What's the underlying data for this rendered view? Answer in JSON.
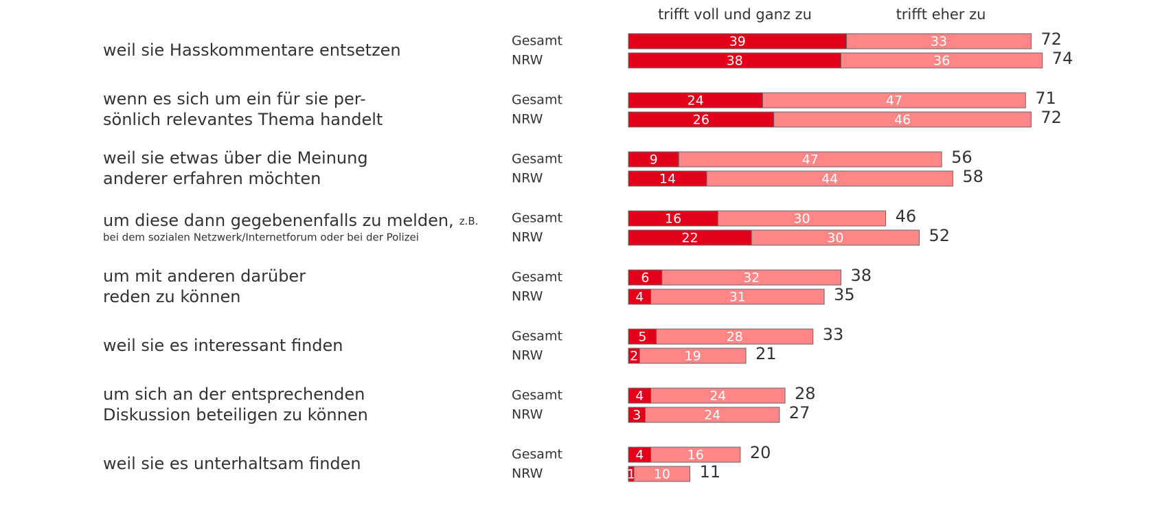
{
  "chart_data": {
    "type": "paired_stacked_bar",
    "categories": [
      {
        "lines": [
          "weil sie Hasskommentare entsetzen"
        ]
      },
      {
        "lines": [
          "wenn es sich um ein für sie per-",
          "sönlich relevantes Thema handelt"
        ]
      },
      {
        "lines": [
          "weil sie etwas über die Meinung",
          "anderer erfahren möchten"
        ]
      },
      {
        "lines": [
          "um diese dann gegebenenfalls zu melden,"
        ],
        "note": "z.B.",
        "subline": "bei dem sozialen Netzwerk/Internetforum oder bei der Polizei"
      },
      {
        "lines": [
          "um mit anderen darüber",
          "reden zu können"
        ]
      },
      {
        "lines": [
          "weil sie es interessant finden"
        ]
      },
      {
        "lines": [
          "um sich an der entsprechenden",
          "Diskussion beteiligen zu können"
        ]
      },
      {
        "lines": [
          "weil sie es unterhaltsam finden"
        ]
      }
    ],
    "groups": [
      "Gesamt",
      "NRW"
    ],
    "series": [
      {
        "name": "trifft voll und ganz zu",
        "color": "#e2001a",
        "values": [
          [
            39,
            38
          ],
          [
            24,
            26
          ],
          [
            9,
            14
          ],
          [
            16,
            22
          ],
          [
            6,
            4
          ],
          [
            5,
            2
          ],
          [
            4,
            3
          ],
          [
            4,
            1
          ]
        ]
      },
      {
        "name": "trifft eher zu",
        "color": "#ff8686",
        "values": [
          [
            33,
            36
          ],
          [
            47,
            46
          ],
          [
            47,
            44
          ],
          [
            30,
            30
          ],
          [
            32,
            31
          ],
          [
            28,
            19
          ],
          [
            24,
            24
          ],
          [
            16,
            10
          ]
        ]
      }
    ],
    "totals": [
      [
        72,
        74
      ],
      [
        71,
        72
      ],
      [
        56,
        58
      ],
      [
        46,
        52
      ],
      [
        38,
        35
      ],
      [
        33,
        21
      ],
      [
        28,
        27
      ],
      [
        20,
        11
      ]
    ],
    "xlim": [
      0,
      97
    ]
  }
}
